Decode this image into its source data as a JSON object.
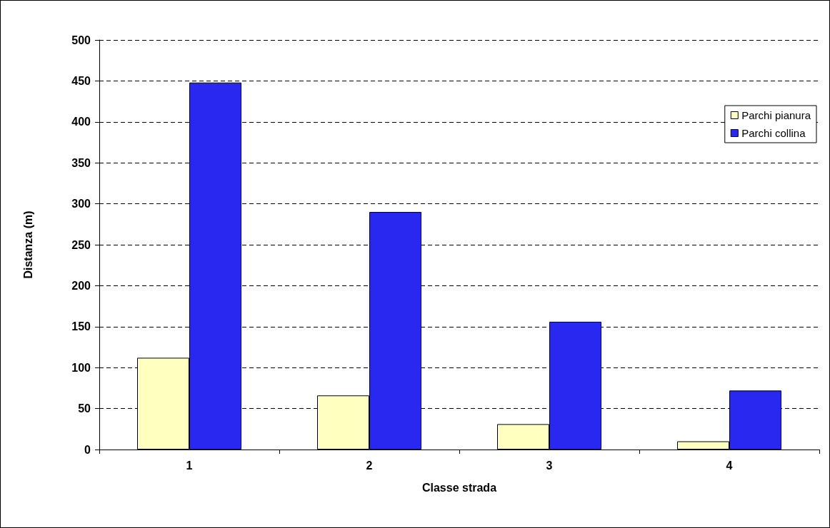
{
  "chart_data": {
    "type": "bar",
    "xlabel": "Classe strada",
    "ylabel": "Distanza (m)",
    "categories": [
      "1",
      "2",
      "3",
      "4"
    ],
    "series": [
      {
        "name": "Parchi pianura",
        "color": "#ffffc0",
        "values": [
          112,
          66,
          31,
          10
        ]
      },
      {
        "name": "Parchi collina",
        "color": "#2828f0",
        "values": [
          448,
          290,
          156,
          72
        ]
      }
    ],
    "ylim": [
      0,
      500
    ],
    "yticks": [
      0,
      50,
      100,
      150,
      200,
      250,
      300,
      350,
      400,
      450,
      500
    ],
    "grid": "y",
    "legend": "top right"
  }
}
